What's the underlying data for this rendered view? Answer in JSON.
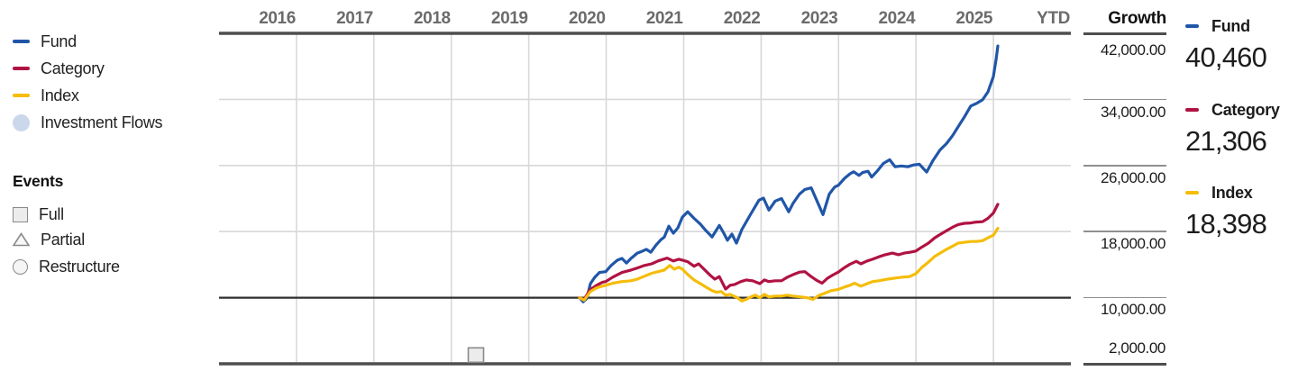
{
  "legend": {
    "series": [
      {
        "label": "Fund",
        "color": "#2056a8",
        "swatch": "line"
      },
      {
        "label": "Category",
        "color": "#b01342",
        "swatch": "line"
      },
      {
        "label": "Index",
        "color": "#f5bd0a",
        "swatch": "line"
      },
      {
        "label": "Investment Flows",
        "color": "#cbd8ec",
        "swatch": "dot"
      }
    ],
    "events": {
      "title": "Events",
      "items": [
        {
          "label": "Full",
          "shape": "square"
        },
        {
          "label": "Partial",
          "shape": "triangle"
        },
        {
          "label": "Restructure",
          "shape": "circle"
        }
      ]
    }
  },
  "growth_axis": {
    "title": "Growth",
    "tick_labels": [
      "42,000.00",
      "34,000.00",
      "26,000.00",
      "18,000.00",
      "10,000.00",
      "2,000.00"
    ]
  },
  "summary": [
    {
      "label": "Fund",
      "value": "40,460",
      "color": "#2056a8"
    },
    {
      "label": "Category",
      "value": "21,306",
      "color": "#b01342"
    },
    {
      "label": "Index",
      "value": "18,398",
      "color": "#f5bd0a"
    }
  ],
  "chart_data": {
    "type": "line",
    "title": "Growth of investment",
    "x_axis": {
      "labels": [
        "2016",
        "2017",
        "2018",
        "2019",
        "2020",
        "2021",
        "2022",
        "2023",
        "2024",
        "2025",
        "YTD"
      ],
      "columns": 11
    },
    "y_axis": {
      "min": 2000,
      "max": 42000,
      "border_values": [
        42000,
        2000
      ],
      "gridline_values": [
        34000,
        26000,
        18000
      ],
      "baseline_value": 10000,
      "tick_values": [
        42000,
        34000,
        26000,
        18000,
        10000,
        2000
      ]
    },
    "grid": {
      "vertical": true,
      "horizontal": true
    },
    "colors": {
      "grid": "#d8d8d8",
      "border": "#4e4e4e",
      "baseline": "#2e2e2e"
    },
    "events_on_chart": [
      {
        "type": "Full",
        "shape": "square",
        "x": 0.3016
      }
    ],
    "series": [
      {
        "name": "Fund",
        "color": "#2056a8",
        "final_value": 40460,
        "points": [
          [
            0.4233,
            10000
          ],
          [
            0.4275,
            9500
          ],
          [
            0.4317,
            9900
          ],
          [
            0.436,
            11700
          ],
          [
            0.4413,
            12500
          ],
          [
            0.4466,
            13050
          ],
          [
            0.454,
            13150
          ],
          [
            0.4603,
            13900
          ],
          [
            0.4677,
            14550
          ],
          [
            0.473,
            14750
          ],
          [
            0.4783,
            14200
          ],
          [
            0.4836,
            14750
          ],
          [
            0.491,
            15400
          ],
          [
            0.4963,
            15600
          ],
          [
            0.5016,
            15850
          ],
          [
            0.5069,
            15500
          ],
          [
            0.5132,
            16400
          ],
          [
            0.5185,
            17000
          ],
          [
            0.5228,
            17350
          ],
          [
            0.528,
            18650
          ],
          [
            0.5333,
            17800
          ],
          [
            0.5386,
            18450
          ],
          [
            0.5439,
            19750
          ],
          [
            0.5503,
            20400
          ],
          [
            0.5577,
            19600
          ],
          [
            0.5651,
            18900
          ],
          [
            0.5704,
            18250
          ],
          [
            0.5788,
            17350
          ],
          [
            0.5873,
            18750
          ],
          [
            0.5926,
            17800
          ],
          [
            0.5968,
            16950
          ],
          [
            0.6021,
            17700
          ],
          [
            0.6074,
            16600
          ],
          [
            0.6138,
            18250
          ],
          [
            0.6243,
            20150
          ],
          [
            0.6339,
            21800
          ],
          [
            0.6392,
            22050
          ],
          [
            0.6455,
            20600
          ],
          [
            0.6529,
            21700
          ],
          [
            0.6603,
            22000
          ],
          [
            0.6688,
            20400
          ],
          [
            0.6741,
            21450
          ],
          [
            0.6815,
            22550
          ],
          [
            0.6878,
            23100
          ],
          [
            0.6952,
            23300
          ],
          [
            0.7016,
            21800
          ],
          [
            0.709,
            20050
          ],
          [
            0.7164,
            22550
          ],
          [
            0.7228,
            23400
          ],
          [
            0.727,
            23600
          ],
          [
            0.7344,
            24450
          ],
          [
            0.7407,
            25000
          ],
          [
            0.745,
            25250
          ],
          [
            0.7513,
            24800
          ],
          [
            0.7556,
            25150
          ],
          [
            0.7619,
            25300
          ],
          [
            0.7661,
            24600
          ],
          [
            0.7725,
            25300
          ],
          [
            0.7799,
            26250
          ],
          [
            0.7873,
            26700
          ],
          [
            0.7937,
            25850
          ],
          [
            0.8011,
            25950
          ],
          [
            0.8085,
            25850
          ],
          [
            0.8148,
            26050
          ],
          [
            0.8222,
            26150
          ],
          [
            0.8307,
            25200
          ],
          [
            0.8381,
            26600
          ],
          [
            0.8466,
            27900
          ],
          [
            0.854,
            28650
          ],
          [
            0.8614,
            29650
          ],
          [
            0.8677,
            30700
          ],
          [
            0.8751,
            31900
          ],
          [
            0.8825,
            33200
          ],
          [
            0.8889,
            33500
          ],
          [
            0.8963,
            33950
          ],
          [
            0.9026,
            34900
          ],
          [
            0.909,
            36750
          ],
          [
            0.9122,
            38800
          ],
          [
            0.9143,
            40460
          ]
        ]
      },
      {
        "name": "Category",
        "color": "#b01342",
        "final_value": 21306,
        "points": [
          [
            0.4233,
            10000
          ],
          [
            0.4286,
            9800
          ],
          [
            0.436,
            11000
          ],
          [
            0.4434,
            11500
          ],
          [
            0.4497,
            11850
          ],
          [
            0.454,
            11950
          ],
          [
            0.4624,
            12500
          ],
          [
            0.473,
            13050
          ],
          [
            0.4836,
            13350
          ],
          [
            0.491,
            13600
          ],
          [
            0.4995,
            13900
          ],
          [
            0.5079,
            14100
          ],
          [
            0.5153,
            14450
          ],
          [
            0.5259,
            14800
          ],
          [
            0.5333,
            14450
          ],
          [
            0.5397,
            14650
          ],
          [
            0.5439,
            14550
          ],
          [
            0.5503,
            14350
          ],
          [
            0.5577,
            13800
          ],
          [
            0.563,
            14100
          ],
          [
            0.5704,
            13350
          ],
          [
            0.5767,
            12700
          ],
          [
            0.582,
            12250
          ],
          [
            0.5873,
            12550
          ],
          [
            0.5947,
            11050
          ],
          [
            0.6,
            11500
          ],
          [
            0.6053,
            11600
          ],
          [
            0.6127,
            11950
          ],
          [
            0.619,
            12150
          ],
          [
            0.6265,
            12050
          ],
          [
            0.6349,
            11700
          ],
          [
            0.6402,
            12150
          ],
          [
            0.6455,
            11950
          ],
          [
            0.6529,
            12050
          ],
          [
            0.6603,
            12050
          ],
          [
            0.6667,
            12450
          ],
          [
            0.6741,
            12800
          ],
          [
            0.6815,
            13100
          ],
          [
            0.6878,
            13150
          ],
          [
            0.6952,
            12550
          ],
          [
            0.7016,
            12100
          ],
          [
            0.7079,
            11750
          ],
          [
            0.7143,
            12350
          ],
          [
            0.7206,
            12750
          ],
          [
            0.727,
            13100
          ],
          [
            0.7344,
            13650
          ],
          [
            0.7407,
            14050
          ],
          [
            0.7481,
            14400
          ],
          [
            0.7534,
            14100
          ],
          [
            0.7608,
            14450
          ],
          [
            0.7672,
            14650
          ],
          [
            0.7746,
            14950
          ],
          [
            0.782,
            15200
          ],
          [
            0.7905,
            15400
          ],
          [
            0.7979,
            15200
          ],
          [
            0.8042,
            15400
          ],
          [
            0.8116,
            15500
          ],
          [
            0.818,
            15650
          ],
          [
            0.8254,
            16150
          ],
          [
            0.8328,
            16600
          ],
          [
            0.8402,
            17250
          ],
          [
            0.8466,
            17650
          ],
          [
            0.854,
            18100
          ],
          [
            0.8614,
            18550
          ],
          [
            0.8677,
            18850
          ],
          [
            0.8751,
            19000
          ],
          [
            0.8825,
            19050
          ],
          [
            0.8889,
            19150
          ],
          [
            0.8963,
            19200
          ],
          [
            0.9026,
            19600
          ],
          [
            0.909,
            20250
          ],
          [
            0.9143,
            21306
          ]
        ]
      },
      {
        "name": "Index",
        "color": "#f5bd0a",
        "final_value": 18398,
        "points": [
          [
            0.4233,
            10000
          ],
          [
            0.4286,
            9700
          ],
          [
            0.436,
            10750
          ],
          [
            0.4434,
            11200
          ],
          [
            0.4497,
            11400
          ],
          [
            0.454,
            11500
          ],
          [
            0.4624,
            11750
          ],
          [
            0.473,
            11950
          ],
          [
            0.4836,
            12050
          ],
          [
            0.491,
            12250
          ],
          [
            0.4995,
            12600
          ],
          [
            0.5079,
            12950
          ],
          [
            0.5153,
            13150
          ],
          [
            0.5228,
            13350
          ],
          [
            0.5291,
            13900
          ],
          [
            0.5344,
            13450
          ],
          [
            0.5397,
            13700
          ],
          [
            0.5439,
            13450
          ],
          [
            0.5503,
            12800
          ],
          [
            0.5577,
            12150
          ],
          [
            0.5651,
            11700
          ],
          [
            0.5714,
            11300
          ],
          [
            0.5788,
            10850
          ],
          [
            0.5841,
            10650
          ],
          [
            0.5894,
            10750
          ],
          [
            0.5947,
            10300
          ],
          [
            0.6,
            10400
          ],
          [
            0.6085,
            10000
          ],
          [
            0.6138,
            9600
          ],
          [
            0.619,
            9800
          ],
          [
            0.6243,
            10100
          ],
          [
            0.6296,
            10300
          ],
          [
            0.6349,
            10000
          ],
          [
            0.6402,
            10400
          ],
          [
            0.6455,
            10100
          ],
          [
            0.6529,
            10200
          ],
          [
            0.6603,
            10200
          ],
          [
            0.6667,
            10300
          ],
          [
            0.6741,
            10200
          ],
          [
            0.6825,
            10100
          ],
          [
            0.6899,
            10000
          ],
          [
            0.6974,
            9800
          ],
          [
            0.7037,
            10250
          ],
          [
            0.7111,
            10550
          ],
          [
            0.7185,
            10850
          ],
          [
            0.727,
            11000
          ],
          [
            0.7344,
            11300
          ],
          [
            0.7407,
            11500
          ],
          [
            0.746,
            11750
          ],
          [
            0.7534,
            11400
          ],
          [
            0.7608,
            11700
          ],
          [
            0.7672,
            11950
          ],
          [
            0.7746,
            12050
          ],
          [
            0.782,
            12200
          ],
          [
            0.7884,
            12300
          ],
          [
            0.7958,
            12400
          ],
          [
            0.8032,
            12500
          ],
          [
            0.8106,
            12550
          ],
          [
            0.818,
            12900
          ],
          [
            0.8254,
            13700
          ],
          [
            0.8328,
            14300
          ],
          [
            0.8402,
            15000
          ],
          [
            0.8466,
            15400
          ],
          [
            0.854,
            15850
          ],
          [
            0.8614,
            16250
          ],
          [
            0.8677,
            16600
          ],
          [
            0.8751,
            16700
          ],
          [
            0.8825,
            16800
          ],
          [
            0.8889,
            16800
          ],
          [
            0.8963,
            16900
          ],
          [
            0.9026,
            17250
          ],
          [
            0.909,
            17550
          ],
          [
            0.9143,
            18398
          ]
        ]
      }
    ]
  }
}
